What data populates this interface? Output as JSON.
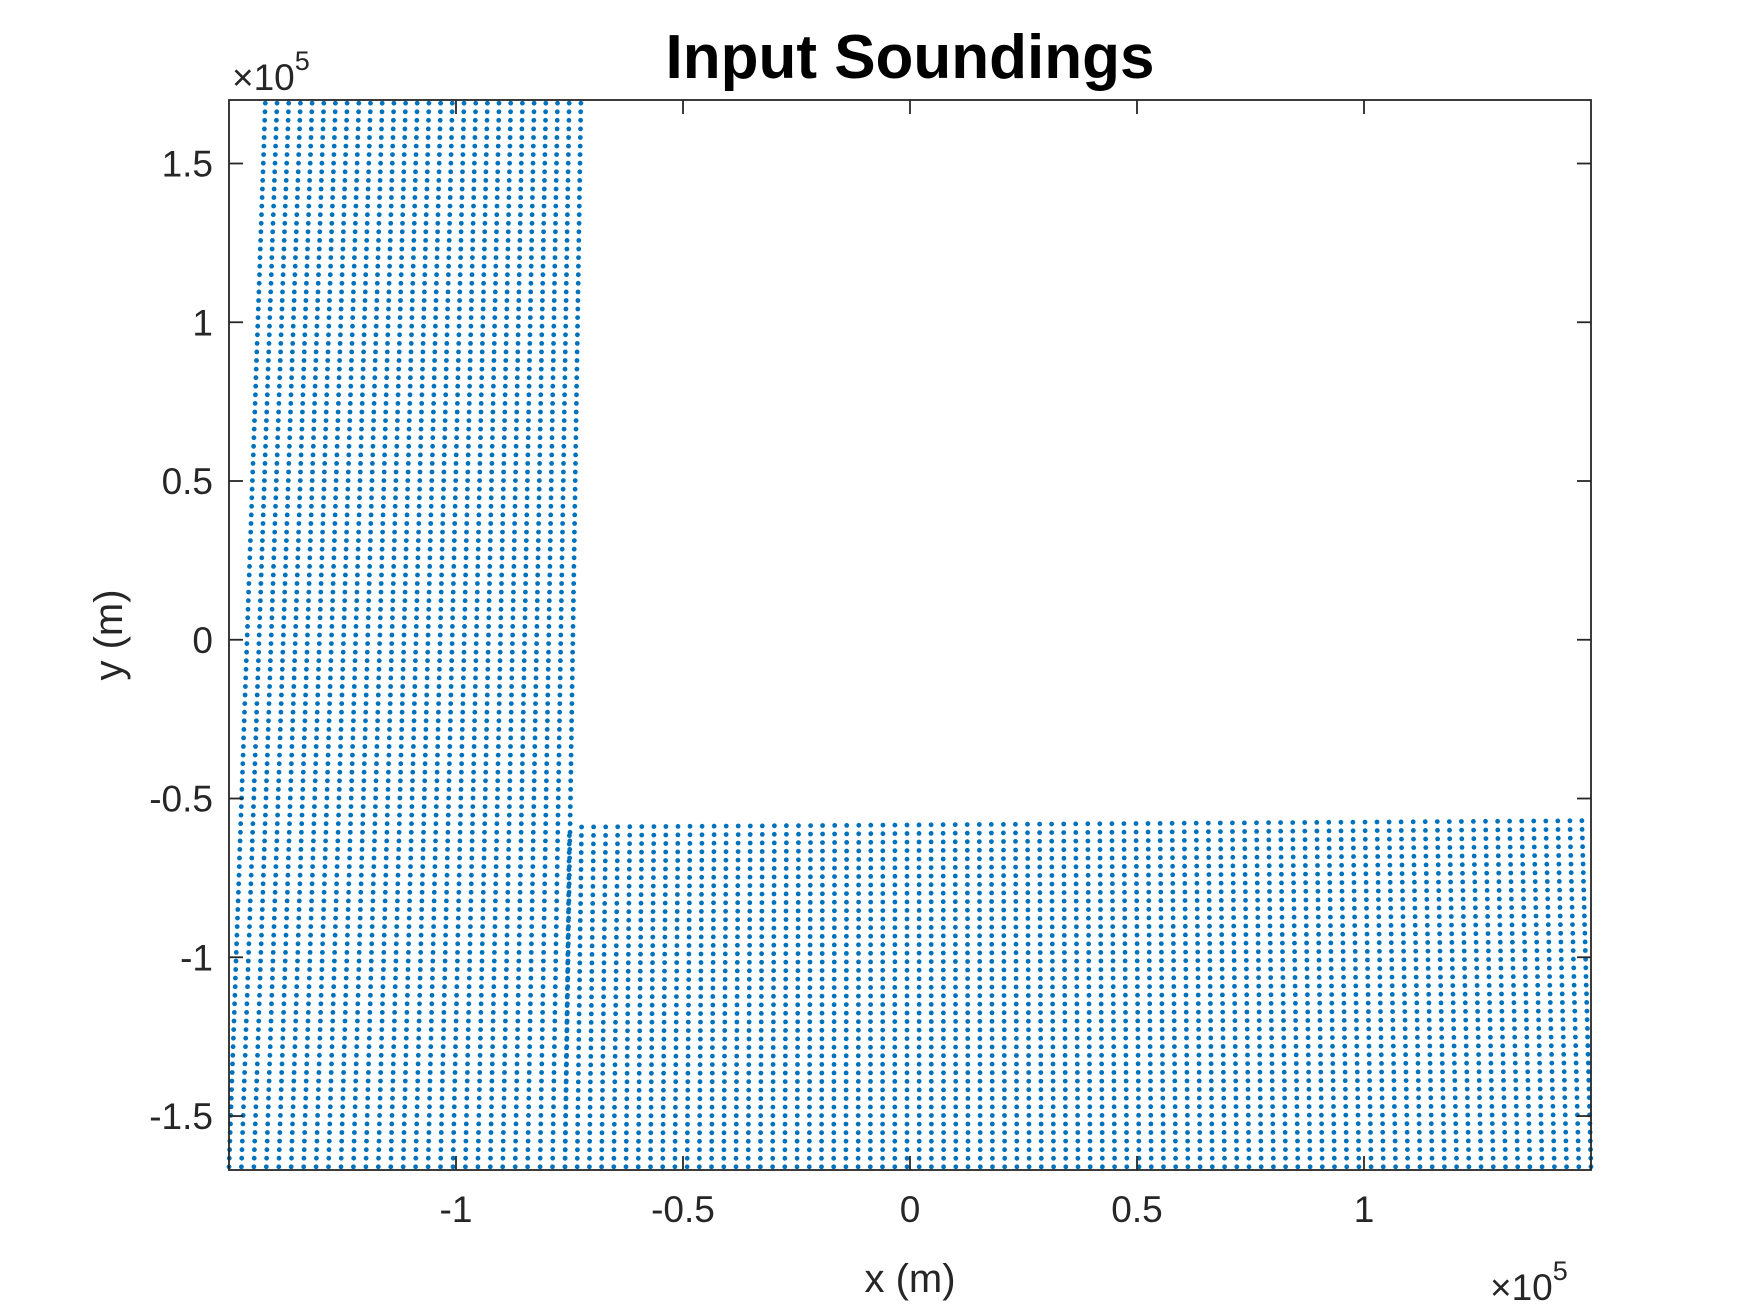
{
  "chart_data": {
    "type": "scatter",
    "title": "Input Soundings",
    "xlabel": "x (m)",
    "ylabel": "y (m)",
    "xlim": [
      -150000,
      150000
    ],
    "ylim": [
      -167000,
      170000
    ],
    "x_multiplier": "×10",
    "x_multiplier_exp": "5",
    "y_multiplier": "×10",
    "y_multiplier_exp": "5",
    "x_ticks": [
      -100000,
      -50000,
      0,
      50000,
      100000
    ],
    "x_tick_labels": [
      "-1",
      "-0.5",
      "0",
      "0.5",
      "1"
    ],
    "y_ticks": [
      -150000,
      -100000,
      -50000,
      0,
      50000,
      100000,
      150000
    ],
    "y_tick_labels": [
      "-1.5",
      "-1",
      "-0.5",
      "0",
      "0.5",
      "1",
      "1.5"
    ],
    "grid": false,
    "marker_color": "#0072BD",
    "series": [
      {
        "grid_spacing": 2700,
        "regions": [
          {
            "corners": {
              "bottom_left": [
                -150000,
                -166000
              ],
              "bottom_right": [
                -76000,
                -166000
              ],
              "top_left": [
                -142000,
                169000
              ],
              "top_right": [
                -72500,
                169000
              ]
            }
          },
          {
            "corners": {
              "bottom_left": [
                -76000,
                -166000
              ],
              "bottom_right": [
                150000,
                -166000
              ],
              "top_left": [
                -75000,
                -59000
              ],
              "top_right": [
                148000,
                -57000
              ]
            }
          }
        ]
      }
    ]
  }
}
